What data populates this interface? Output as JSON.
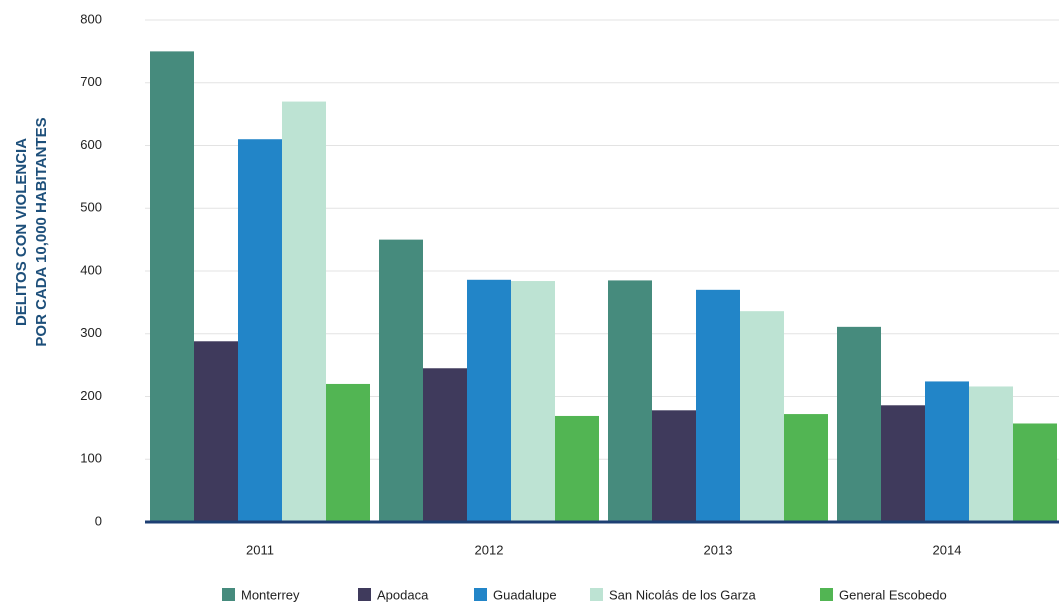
{
  "chart_data": {
    "type": "bar",
    "y_label": [
      "DELITOS CON VIOLENCIA",
      "POR CADA 10,000 HABITANTES"
    ],
    "categories": [
      "2011",
      "2012",
      "2013",
      "2014"
    ],
    "series": [
      {
        "name": "Monterrey",
        "color": "#468b7d",
        "values": [
          750,
          450,
          385,
          311
        ]
      },
      {
        "name": "Apodaca",
        "color": "#3f3a5c",
        "values": [
          288,
          245,
          178,
          186
        ]
      },
      {
        "name": "Guadalupe",
        "color": "#2285c8",
        "values": [
          610,
          386,
          370,
          224
        ]
      },
      {
        "name": "San Nicolás de los Garza",
        "color": "#bde3d3",
        "values": [
          670,
          384,
          336,
          216
        ]
      },
      {
        "name": "General Escobedo",
        "color": "#52b553",
        "values": [
          220,
          169,
          172,
          157
        ]
      }
    ],
    "ylim": [
      0,
      800
    ],
    "yticks": [
      0,
      100,
      200,
      300,
      400,
      500,
      600,
      700,
      800
    ],
    "grid": true,
    "legend": "bottom"
  }
}
